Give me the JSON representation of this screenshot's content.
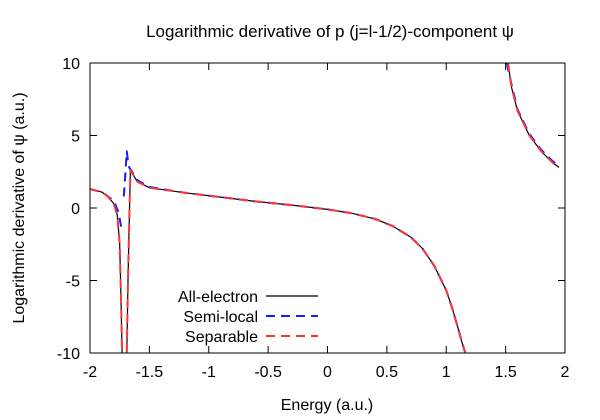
{
  "chart_data": {
    "type": "line",
    "title": "Logarithmic derivative of p (j=l-1/2)-component ψ",
    "xlabel": "Energy (a.u.)",
    "ylabel": "Logarithmic derivative of ψ (a.u.)",
    "xlim": [
      -2,
      2
    ],
    "ylim": [
      -10,
      10
    ],
    "x_ticks": [
      -2,
      -1.5,
      -1,
      -0.5,
      0,
      0.5,
      1,
      1.5,
      2
    ],
    "x_tick_labels": [
      "-2",
      "-1.5",
      "-1",
      "-0.5",
      "0",
      "0.5",
      "1",
      "1.5",
      "2"
    ],
    "y_ticks": [
      -10,
      -5,
      0,
      5,
      10
    ],
    "y_tick_labels": [
      "-10",
      "-5",
      "0",
      "5",
      "10"
    ],
    "grid": false,
    "legend": "bottom-left",
    "series": [
      {
        "name": "All-electron",
        "color": "#000000",
        "dash": "solid",
        "segments": [
          {
            "x": [
              -2.0,
              -1.9,
              -1.85,
              -1.8,
              -1.77,
              -1.75,
              -1.74,
              -1.73
            ],
            "y": [
              1.3,
              1.1,
              0.8,
              0.3,
              -0.5,
              -2.5,
              -6.0,
              -10.0
            ]
          },
          {
            "x": [
              -1.69,
              -1.68,
              -1.67,
              -1.66,
              -1.6,
              -1.5,
              -1.2,
              -0.9,
              -0.6,
              -0.3,
              0.0,
              0.2,
              0.4,
              0.55,
              0.7,
              0.8,
              0.9,
              1.0,
              1.05,
              1.1,
              1.13,
              1.16
            ],
            "y": [
              -10.0,
              -5.0,
              -1.0,
              2.6,
              1.8,
              1.4,
              1.05,
              0.75,
              0.45,
              0.2,
              -0.1,
              -0.35,
              -0.75,
              -1.25,
              -2.0,
              -2.8,
              -4.0,
              -5.7,
              -6.9,
              -8.3,
              -9.2,
              -10.0
            ]
          },
          {
            "x": [
              1.52,
              1.55,
              1.6,
              1.7,
              1.8,
              1.9,
              1.95
            ],
            "y": [
              10.0,
              8.3,
              6.7,
              5.0,
              3.9,
              3.1,
              2.8
            ]
          }
        ]
      },
      {
        "name": "Semi-local",
        "color": "#1a1aff",
        "dash": "dashed",
        "segments": [
          {
            "x": [
              -2.0,
              -1.9,
              -1.8,
              -1.76,
              -1.74,
              -1.73
            ],
            "y": [
              1.3,
              1.1,
              0.5,
              -0.3,
              -1.2,
              -1.7
            ]
          },
          {
            "x": [
              -1.715,
              -1.705,
              -1.69,
              -1.68,
              -1.67,
              -1.6,
              -1.5,
              -1.2,
              -0.9,
              -0.6,
              -0.3,
              0.0,
              0.2,
              0.4,
              0.55,
              0.7,
              0.8,
              0.9,
              1.0,
              1.05,
              1.1,
              1.13,
              1.16
            ],
            "y": [
              0.8,
              2.0,
              3.9,
              3.2,
              2.8,
              1.9,
              1.45,
              1.05,
              0.75,
              0.45,
              0.2,
              -0.1,
              -0.35,
              -0.75,
              -1.25,
              -2.0,
              -2.8,
              -4.0,
              -5.7,
              -6.9,
              -8.3,
              -9.2,
              -10.0
            ]
          },
          {
            "x": [
              1.51,
              1.55,
              1.6,
              1.7,
              1.8,
              1.9,
              1.95
            ],
            "y": [
              10.0,
              8.5,
              6.8,
              5.1,
              4.0,
              3.2,
              2.9
            ]
          }
        ]
      },
      {
        "name": "Separable",
        "color": "#ff3333",
        "dash": "dashed",
        "segments": [
          {
            "x": [
              -2.0,
              -1.9,
              -1.85,
              -1.8,
              -1.77,
              -1.75,
              -1.74,
              -1.73
            ],
            "y": [
              1.3,
              1.1,
              0.8,
              0.3,
              -0.5,
              -2.5,
              -6.0,
              -10.0
            ]
          },
          {
            "x": [
              -1.69,
              -1.68,
              -1.67,
              -1.66,
              -1.6,
              -1.5,
              -1.2,
              -0.9,
              -0.6,
              -0.3,
              0.0,
              0.2,
              0.4,
              0.55,
              0.7,
              0.8,
              0.9,
              1.0,
              1.05,
              1.1,
              1.13,
              1.16
            ],
            "y": [
              -10.0,
              -5.0,
              -1.0,
              2.6,
              1.8,
              1.4,
              1.05,
              0.75,
              0.45,
              0.2,
              -0.1,
              -0.35,
              -0.75,
              -1.25,
              -2.0,
              -2.8,
              -4.0,
              -5.7,
              -6.9,
              -8.3,
              -9.2,
              -10.0
            ]
          },
          {
            "x": [
              1.52,
              1.55,
              1.6,
              1.7,
              1.8,
              1.9,
              1.95
            ],
            "y": [
              10.0,
              8.3,
              6.7,
              5.0,
              3.9,
              3.1,
              2.8
            ]
          }
        ]
      }
    ]
  }
}
